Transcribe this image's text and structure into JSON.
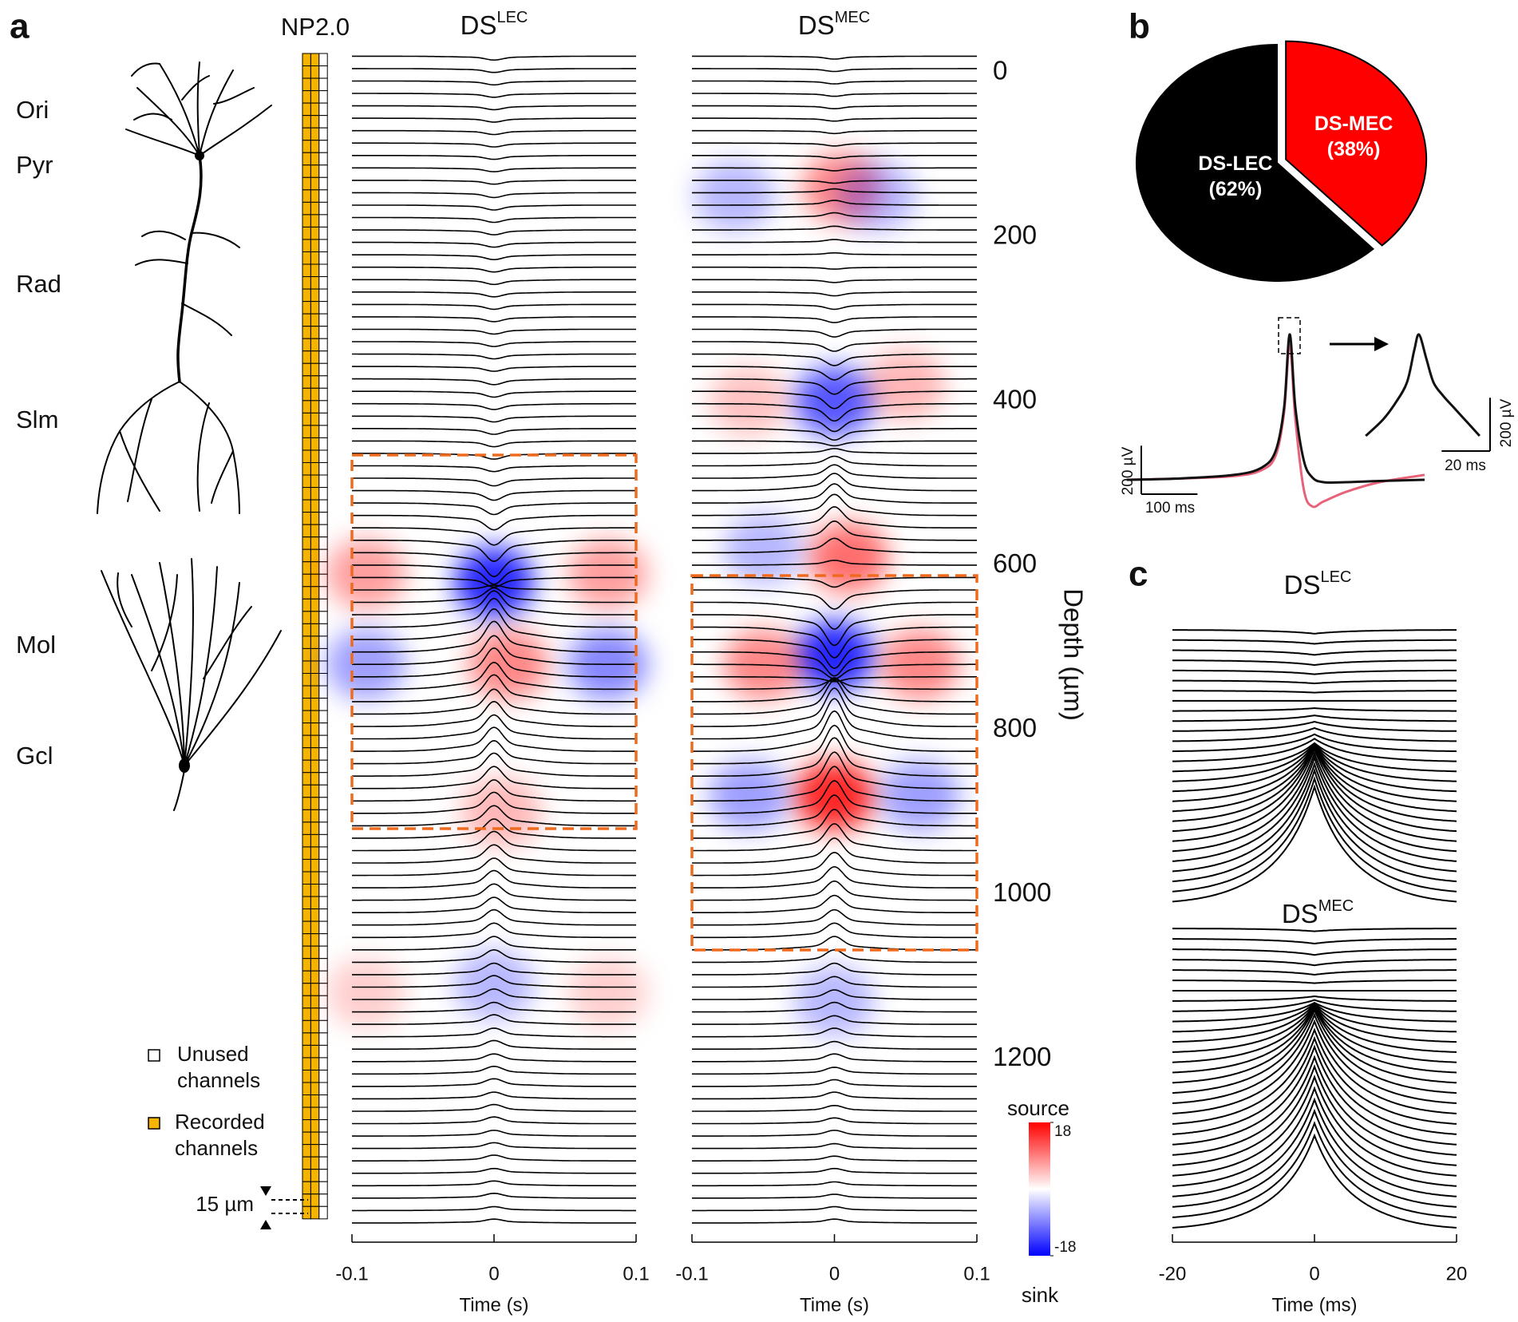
{
  "panel_labels": [
    "a",
    "b",
    "c"
  ],
  "anatomy": {
    "layers": [
      "Ori",
      "Pyr",
      "Rad",
      "Slm",
      "Mol",
      "Gcl"
    ],
    "probe_title": "NP2.0",
    "legend": [
      {
        "lines": [
          "Unused",
          "channels"
        ]
      },
      {
        "lines": [
          "Recorded",
          "channels"
        ]
      }
    ],
    "spacing_label": "15 µm"
  },
  "chart_data": [
    {
      "type": "traces",
      "title": {
        "main": "DS",
        "sup": "LEC"
      },
      "xlim": [
        -0.1,
        0.1
      ],
      "xticks": [
        -0.1,
        0,
        0.1
      ],
      "xlabel": "Time (s)",
      "ylim": [
        -20,
        1400
      ],
      "amplitudes": [
        -4,
        -4,
        -4,
        -4,
        -4,
        -4,
        -4,
        -4,
        -4,
        -4,
        -4,
        -5,
        -5,
        -5,
        -5,
        -5,
        -5,
        -5,
        -5,
        -5,
        -5,
        -5,
        -5,
        -5,
        -5,
        -5,
        -6,
        -6,
        -6,
        -6,
        -6,
        -6,
        -6,
        -6,
        -8,
        -10,
        -12,
        -15,
        -18,
        -22,
        -25,
        -20,
        -10,
        5,
        15,
        25,
        30,
        32,
        32,
        30,
        30,
        28,
        28,
        26,
        26,
        25,
        25,
        24,
        24,
        23,
        22,
        22,
        21,
        20,
        20,
        19,
        18,
        18,
        17,
        16,
        16,
        15,
        14,
        13,
        12,
        12,
        11,
        10,
        10,
        9,
        9,
        8,
        8,
        8,
        7,
        7,
        7,
        6,
        6,
        6,
        5,
        5,
        5,
        4,
        4
      ],
      "csd": [
        {
          "t": 0,
          "depth": 620,
          "value": -18
        },
        {
          "t": -0.09,
          "depth": 610,
          "value": 8
        },
        {
          "t": 0.08,
          "depth": 610,
          "value": 8
        },
        {
          "t": 0.01,
          "depth": 720,
          "value": 10
        },
        {
          "t": -0.09,
          "depth": 720,
          "value": -8
        },
        {
          "t": 0.08,
          "depth": 720,
          "value": -10
        },
        {
          "t": 0.005,
          "depth": 900,
          "value": 6
        },
        {
          "t": 0,
          "depth": 1110,
          "value": -6
        },
        {
          "t": -0.09,
          "depth": 1120,
          "value": 4
        },
        {
          "t": 0.08,
          "depth": 1120,
          "value": 4
        }
      ]
    },
    {
      "type": "traces",
      "title": {
        "main": "DS",
        "sup": "MEC"
      },
      "xlim": [
        -0.1,
        0.1
      ],
      "xticks": [
        -0.1,
        0,
        0.1
      ],
      "xlabel": "Time (s)",
      "ylim": [
        -20,
        1400
      ],
      "yticks": [
        0,
        200,
        400,
        600,
        800,
        1000,
        1200
      ],
      "ylabel": "Depth (µm)",
      "amplitudes": [
        -3,
        -3,
        -3,
        -3,
        -3,
        -3,
        -3,
        -3,
        -3,
        -3,
        -3,
        4,
        5,
        5,
        4,
        3,
        2,
        -2,
        -3,
        -4,
        -5,
        -6,
        -8,
        -10,
        -12,
        -14,
        -16,
        -18,
        -18,
        -16,
        -12,
        -5,
        5,
        10,
        14,
        18,
        20,
        22,
        22,
        20,
        15,
        5,
        -10,
        -20,
        -28,
        -32,
        -32,
        -30,
        -25,
        -15,
        -5,
        10,
        25,
        35,
        40,
        42,
        42,
        40,
        40,
        38,
        36,
        34,
        32,
        30,
        28,
        26,
        24,
        22,
        20,
        18,
        16,
        15,
        14,
        13,
        12,
        11,
        10,
        10,
        9,
        9,
        8,
        8,
        7,
        7,
        7,
        6,
        6,
        6,
        5,
        5,
        5,
        4,
        4,
        4,
        4
      ],
      "csd": [
        {
          "t": 0.005,
          "depth": 140,
          "value": 10
        },
        {
          "t": -0.07,
          "depth": 150,
          "value": -6
        },
        {
          "t": 0.03,
          "depth": 150,
          "value": -6
        },
        {
          "t": 0,
          "depth": 400,
          "value": -14
        },
        {
          "t": 0.05,
          "depth": 380,
          "value": 6
        },
        {
          "t": -0.06,
          "depth": 400,
          "value": 5
        },
        {
          "t": 0.01,
          "depth": 590,
          "value": 12
        },
        {
          "t": -0.05,
          "depth": 580,
          "value": -6
        },
        {
          "t": 0,
          "depth": 710,
          "value": -18
        },
        {
          "t": -0.05,
          "depth": 720,
          "value": 10
        },
        {
          "t": 0.06,
          "depth": 720,
          "value": 10
        },
        {
          "t": 0,
          "depth": 880,
          "value": 18
        },
        {
          "t": -0.06,
          "depth": 880,
          "value": -8
        },
        {
          "t": 0.06,
          "depth": 880,
          "value": -8
        },
        {
          "t": 0,
          "depth": 1130,
          "value": -6
        }
      ],
      "colorbar": {
        "label_top": "source",
        "label_bottom": "sink",
        "lim": [
          -18,
          18
        ],
        "ticks": [
          -18,
          18
        ],
        "colormap": [
          "#0000ff",
          "#ffffff",
          "#ff0000"
        ]
      }
    },
    {
      "type": "pie",
      "categories": [
        "DS-LEC",
        "DS-MEC"
      ],
      "values": [
        62,
        38
      ],
      "value_labels": [
        "(62%)",
        "(38%)"
      ],
      "colors": [
        "#000000",
        "#ff0000"
      ]
    },
    {
      "type": "line",
      "x": [
        -290,
        -200,
        -100,
        -50,
        -25,
        -10,
        0,
        10,
        25,
        40,
        60,
        100,
        160,
        240
      ],
      "series": [
        {
          "color": "#111111",
          "values": [
            0,
            5,
            20,
            50,
            120,
            300,
            600,
            300,
            80,
            10,
            -10,
            -10,
            -5,
            0
          ]
        },
        {
          "color": "#e8637a",
          "values": [
            0,
            5,
            15,
            40,
            100,
            280,
            560,
            250,
            -40,
            -110,
            -90,
            -50,
            -10,
            20
          ]
        }
      ],
      "scalebars": [
        {
          "value": 200,
          "label": "200 µV"
        },
        {
          "value": 100,
          "label": "100 ms"
        }
      ]
    },
    {
      "type": "line",
      "x": [
        -22,
        -15,
        -10,
        -5,
        -2,
        0,
        3,
        6,
        10,
        15,
        20,
        25
      ],
      "series": [
        {
          "color": "#111111",
          "values": [
            0,
            60,
            120,
            200,
            320,
            380,
            290,
            200,
            150,
            100,
            50,
            0
          ]
        }
      ],
      "scalebars": [
        {
          "value": 200,
          "label": "200 µV"
        },
        {
          "value": 20,
          "label": "20 ms"
        }
      ]
    },
    {
      "type": "ctraces",
      "title": {
        "main": "DS",
        "sup": "LEC"
      },
      "xlim": [
        -20,
        20
      ],
      "amplitudes": [
        -4,
        -4,
        -5,
        -5,
        -4,
        -3,
        -2,
        0,
        3,
        6,
        10,
        14,
        18,
        24,
        30,
        40,
        50,
        60,
        70,
        80,
        90,
        98,
        104,
        110,
        114,
        118,
        120,
        122
      ]
    },
    {
      "type": "ctraces",
      "title": {
        "main": "DS",
        "sup": "MEC"
      },
      "xlim": [
        -20,
        20
      ],
      "xticks": [
        -20,
        0,
        20
      ],
      "xlabel": "Time (ms)",
      "amplitudes": [
        -3,
        -5,
        -6,
        -6,
        -5,
        -3,
        0,
        5,
        12,
        20,
        30,
        40,
        50,
        60,
        70,
        80,
        88,
        94,
        98,
        100,
        102,
        104,
        104,
        105,
        105,
        104,
        103,
        102,
        100,
        98
      ]
    }
  ]
}
